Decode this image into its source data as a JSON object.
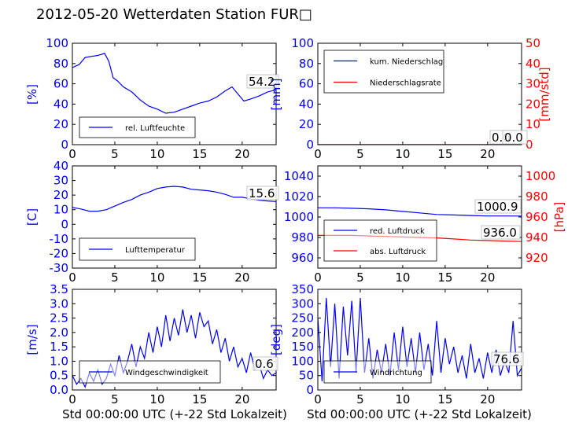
{
  "title": "2012-05-20 Wetterdaten Station FUR□",
  "colors": {
    "blue": "#0000ff",
    "red": "#ff0000",
    "black": "#000000"
  },
  "chart_data": [
    {
      "type": "line",
      "xlim": [
        0,
        24
      ],
      "xticks": [
        0,
        5,
        10,
        15,
        20
      ],
      "ylabel": "[%]",
      "ylim": [
        0,
        100
      ],
      "yticks": [
        0,
        20,
        40,
        60,
        80,
        100
      ],
      "legend_placement": "lower-left",
      "series": [
        {
          "name": "rel. Luftfeuchte",
          "color": "#0000ff",
          "x": [
            0,
            0.8,
            1.5,
            2.2,
            3,
            3.8,
            4.3,
            4.8,
            5.3,
            6,
            7,
            8,
            9,
            10,
            11,
            12,
            13,
            14,
            15,
            16,
            17,
            18,
            18.8,
            19.5,
            20.2,
            21,
            22,
            23,
            24
          ],
          "y": [
            76,
            79,
            86,
            87,
            88,
            90,
            82,
            66,
            63,
            57,
            52,
            44,
            38,
            35,
            31,
            32,
            35,
            38,
            41,
            43,
            47,
            53,
            57,
            50,
            43,
            45,
            48,
            52,
            54
          ]
        }
      ],
      "annotations": [
        {
          "text": "54.2"
        }
      ]
    },
    {
      "type": "line",
      "xlim": [
        0,
        24
      ],
      "xticks": [
        0,
        5,
        10,
        15,
        20
      ],
      "ylabel": "[mm]",
      "ylim": [
        0,
        100
      ],
      "yticks": [
        0,
        20,
        40,
        60,
        80,
        100
      ],
      "y2label": "[mm/std]",
      "y2lim": [
        0,
        50
      ],
      "y2ticks": [
        0,
        10,
        20,
        30,
        40,
        50
      ],
      "legend_placement": "upper-left",
      "series": [
        {
          "name": "kum. Niederschlag",
          "color": "#0000ff",
          "axis": "left",
          "x": [
            0,
            24
          ],
          "y": [
            0,
            0
          ]
        },
        {
          "name": "Niederschlagsrate",
          "color": "#ff0000",
          "axis": "right",
          "x": [
            0,
            24
          ],
          "y": [
            0,
            0
          ]
        }
      ],
      "annotations": [
        {
          "text": "0.0"
        },
        {
          "text": "0.0"
        }
      ]
    },
    {
      "type": "line",
      "xlim": [
        0,
        24
      ],
      "xticks": [
        0,
        5,
        10,
        15,
        20
      ],
      "ylabel": "[C]",
      "ylim": [
        -30,
        40
      ],
      "yticks": [
        -30,
        -20,
        -10,
        0,
        10,
        20,
        30,
        40
      ],
      "legend_placement": "lower-left",
      "series": [
        {
          "name": "Lufttemperatur",
          "color": "#0000ff",
          "x": [
            0,
            1,
            2,
            3,
            4,
            5,
            6,
            7,
            8,
            9,
            10,
            11,
            12,
            13,
            14,
            15,
            16,
            17,
            18,
            19,
            20,
            21,
            22,
            23,
            24
          ],
          "y": [
            11.5,
            10.5,
            9,
            9,
            10,
            12.5,
            15,
            17,
            20,
            22,
            24.5,
            25.5,
            26,
            25.5,
            24,
            23.5,
            23,
            22,
            20.5,
            18.5,
            18.5,
            17.5,
            16.5,
            16,
            15.6
          ]
        }
      ],
      "annotations": [
        {
          "text": "15.6"
        }
      ]
    },
    {
      "type": "line",
      "xlim": [
        0,
        24
      ],
      "xticks": [
        0,
        5,
        10,
        15,
        20
      ],
      "ylabel": "",
      "ylim": [
        950,
        1050
      ],
      "yticks": [
        960,
        980,
        1000,
        1020,
        1040
      ],
      "y2label": "[hPa]",
      "y2lim": [
        910,
        1010
      ],
      "y2ticks": [
        920,
        940,
        960,
        980,
        1000
      ],
      "legend_placement": "lower-left",
      "series": [
        {
          "name": "red. Luftdruck",
          "color": "#0000ff",
          "axis": "left",
          "x": [
            0,
            2,
            4,
            6,
            8,
            10,
            12,
            14,
            16,
            18,
            20,
            22,
            24
          ],
          "y": [
            1009,
            1009,
            1008.5,
            1008,
            1007,
            1005.5,
            1004,
            1002.5,
            1002,
            1001.5,
            1001,
            1001,
            1000.9
          ]
        },
        {
          "name": "abs. Luftdruck",
          "color": "#ff0000",
          "axis": "right",
          "x": [
            0,
            2,
            4,
            6,
            8,
            10,
            12,
            14,
            16,
            18,
            20,
            22,
            24
          ],
          "y": [
            942,
            942,
            942,
            941.5,
            941,
            940.5,
            940,
            939.5,
            938.5,
            937.5,
            937,
            936.5,
            936.0
          ]
        }
      ],
      "annotations": [
        {
          "text": "1000.9"
        },
        {
          "text": "936.0"
        }
      ]
    },
    {
      "type": "line",
      "xlim": [
        0,
        24
      ],
      "xticks": [
        0,
        5,
        10,
        15,
        20
      ],
      "xlabel": "Std 00:00:00 UTC (+-22 Std Lokalzeit)",
      "ylabel": "[m/s]",
      "ylim": [
        0,
        3.5
      ],
      "yticks": [
        0.0,
        0.5,
        1.0,
        1.5,
        2.0,
        2.5,
        3.0,
        3.5
      ],
      "legend_placement": "lower-left",
      "series": [
        {
          "name": "Windgeschwindigkeit",
          "color": "#0000ff",
          "x": [
            0,
            0.5,
            1,
            1.5,
            2,
            2.5,
            3,
            3.5,
            4,
            4.5,
            5,
            5.5,
            6,
            6.5,
            7,
            7.5,
            8,
            8.5,
            9,
            9.5,
            10,
            10.5,
            11,
            11.5,
            12,
            12.5,
            13,
            13.5,
            14,
            14.5,
            15,
            15.5,
            16,
            16.5,
            17,
            17.5,
            18,
            18.5,
            19,
            19.5,
            20,
            20.5,
            21,
            21.5,
            22,
            22.5,
            23,
            23.5,
            24
          ],
          "y": [
            0.5,
            0.2,
            0.4,
            0.1,
            0.6,
            0.3,
            0.7,
            0.2,
            0.4,
            0.9,
            0.5,
            1.2,
            0.6,
            1.0,
            1.6,
            0.8,
            1.5,
            1.1,
            2.0,
            1.3,
            2.2,
            1.5,
            2.6,
            1.7,
            2.5,
            1.9,
            2.8,
            2.0,
            2.6,
            1.8,
            2.7,
            2.2,
            2.4,
            1.6,
            2.1,
            1.3,
            1.8,
            1.0,
            1.5,
            0.8,
            1.1,
            0.6,
            1.3,
            0.7,
            0.9,
            0.4,
            0.7,
            0.5,
            0.6
          ]
        }
      ],
      "annotations": [
        {
          "text": "0.6"
        }
      ]
    },
    {
      "type": "line",
      "xlim": [
        0,
        24
      ],
      "xticks": [
        0,
        5,
        10,
        15,
        20
      ],
      "xlabel": "Std 00:00:00 UTC (+-22 Std Lokalzeit)",
      "ylabel": "[deg]",
      "ylim": [
        0,
        350
      ],
      "yticks": [
        0,
        50,
        100,
        150,
        200,
        250,
        300,
        350
      ],
      "legend_placement": "lower-left",
      "series": [
        {
          "name": "Windrichtung",
          "color": "#0000ff",
          "x": [
            0,
            0.5,
            1,
            1.5,
            2,
            2.5,
            3,
            3.5,
            4,
            4.5,
            5,
            5.5,
            6,
            6.5,
            7,
            7.5,
            8,
            8.5,
            9,
            9.5,
            10,
            10.5,
            11,
            11.5,
            12,
            12.5,
            13,
            13.5,
            14,
            14.5,
            15,
            15.5,
            16,
            16.5,
            17,
            17.5,
            18,
            18.5,
            19,
            19.5,
            20,
            20.5,
            21,
            21.5,
            22,
            22.5,
            23,
            23.5,
            24
          ],
          "y": [
            250,
            30,
            320,
            80,
            300,
            40,
            290,
            120,
            310,
            60,
            320,
            60,
            180,
            40,
            140,
            60,
            160,
            50,
            200,
            70,
            220,
            80,
            180,
            60,
            200,
            70,
            160,
            50,
            240,
            60,
            180,
            90,
            150,
            60,
            120,
            40,
            160,
            60,
            110,
            40,
            130,
            60,
            140,
            50,
            100,
            60,
            240,
            50,
            76.6
          ]
        }
      ],
      "annotations": [
        {
          "text": "76.6"
        }
      ]
    }
  ]
}
